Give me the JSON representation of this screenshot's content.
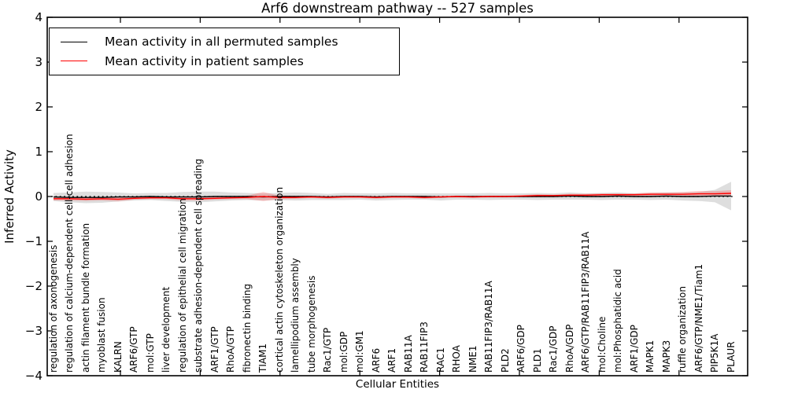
{
  "title": "Arf6 downstream pathway -- 527 samples",
  "axes": {
    "ylabel": "Inferred Activity",
    "xlabel": "Cellular Entities",
    "ytick_labels": [
      "4",
      "3",
      "2",
      "1",
      "0",
      "−1",
      "−2",
      "−3",
      "−4"
    ]
  },
  "legend": {
    "items": [
      {
        "label": "Mean activity in all permuted samples",
        "color": "#000000"
      },
      {
        "label": "Mean activity in patient samples",
        "color": "#ff0000"
      }
    ]
  },
  "chart_data": {
    "type": "line",
    "title": "Arf6 downstream pathway -- 527 samples",
    "xlabel": "Cellular Entities",
    "ylabel": "Inferred Activity",
    "ylim": [
      -4,
      4
    ],
    "grid": false,
    "legend_position": "upper left",
    "zero_line": true,
    "categories": [
      "regulation of axonogenesis",
      "regulation of calcium-dependent cell-cell adhesion",
      "actin filament bundle formation",
      "myoblast fusion",
      "KALRN",
      "ARF6/GTP",
      "mol:GTP",
      "liver development",
      "regulation of epithelial cell migration",
      "substrate adhesion-dependent cell spreading",
      "ARF1/GTP",
      "RhoA/GTP",
      "fibronectin binding",
      "TIAM1",
      "cortical actin cytoskeleton organization",
      "lamellipodium assembly",
      "tube morphogenesis",
      "Rac1/GTP",
      "mol:GDP",
      "mol:GM1",
      "ARF6",
      "ARF1",
      "RAB11A",
      "RAB11FIP3",
      "RAC1",
      "RHOA",
      "NME1",
      "RAB11FIP3/RAB11A",
      "PLD2",
      "ARF6/GDP",
      "PLD1",
      "Rac1/GDP",
      "RhoA/GDP",
      "ARF6/GTP/RAB11FIP3/RAB11A",
      "mol:Choline",
      "mol:Phosphatidic acid",
      "ARF1/GDP",
      "MAPK1",
      "MAPK3",
      "ruffle organization",
      "ARF6/GTP/NME1/Tiam1",
      "PIP5K1A",
      "PLAUR"
    ],
    "series": [
      {
        "name": "Mean activity in all permuted samples",
        "color": "#000000",
        "values": [
          -0.01,
          -0.02,
          -0.02,
          -0.02,
          -0.01,
          -0.01,
          0,
          -0.01,
          -0.01,
          -0.01,
          0,
          0,
          0,
          -0.01,
          0,
          0,
          0,
          -0.01,
          0,
          0,
          -0.01,
          0,
          0,
          0,
          -0.01,
          0,
          0,
          0,
          0,
          0,
          0,
          0,
          0.01,
          0,
          0,
          0.01,
          0,
          0,
          0.01,
          0,
          0,
          0.01,
          0.01
        ]
      },
      {
        "name": "Mean activity in patient samples",
        "color": "#ff0000",
        "values": [
          -0.05,
          -0.05,
          -0.06,
          -0.05,
          -0.06,
          -0.04,
          -0.03,
          -0.03,
          -0.05,
          -0.05,
          -0.04,
          -0.03,
          -0.02,
          0,
          -0.02,
          -0.02,
          -0.01,
          -0.02,
          -0.01,
          -0.01,
          -0.02,
          -0.01,
          -0.01,
          -0.02,
          -0.01,
          0,
          -0.01,
          0,
          0,
          0.01,
          0.02,
          0.02,
          0.03,
          0.03,
          0.04,
          0.04,
          0.04,
          0.05,
          0.05,
          0.05,
          0.06,
          0.06,
          0.07
        ]
      }
    ],
    "bands": [
      {
        "name": "permuted-activity-range",
        "center_series": 0,
        "color": "rgba(0,0,0,0.13)",
        "half_widths": [
          0.09,
          0.11,
          0.13,
          0.12,
          0.1,
          0.08,
          0.08,
          0.09,
          0.11,
          0.12,
          0.11,
          0.09,
          0.08,
          0.08,
          0.08,
          0.09,
          0.08,
          0.07,
          0.08,
          0.07,
          0.08,
          0.08,
          0.07,
          0.07,
          0.08,
          0.07,
          0.07,
          0.08,
          0.07,
          0.07,
          0.08,
          0.07,
          0.08,
          0.07,
          0.08,
          0.08,
          0.07,
          0.08,
          0.08,
          0.09,
          0.1,
          0.14,
          0.32
        ]
      },
      {
        "name": "patient-activity-range",
        "center_series": 1,
        "color": "rgba(255,0,0,0.20)",
        "half_widths": [
          0.04,
          0.04,
          0.04,
          0.04,
          0.05,
          0.03,
          0.03,
          0.03,
          0.04,
          0.04,
          0.03,
          0.03,
          0.04,
          0.1,
          0.04,
          0.03,
          0.02,
          0.03,
          0.02,
          0.02,
          0.03,
          0.02,
          0.02,
          0.03,
          0.02,
          0.02,
          0.02,
          0.02,
          0.02,
          0.02,
          0.03,
          0.02,
          0.03,
          0.03,
          0.03,
          0.03,
          0.03,
          0.04,
          0.04,
          0.05,
          0.06,
          0.06,
          0.07
        ]
      }
    ]
  }
}
